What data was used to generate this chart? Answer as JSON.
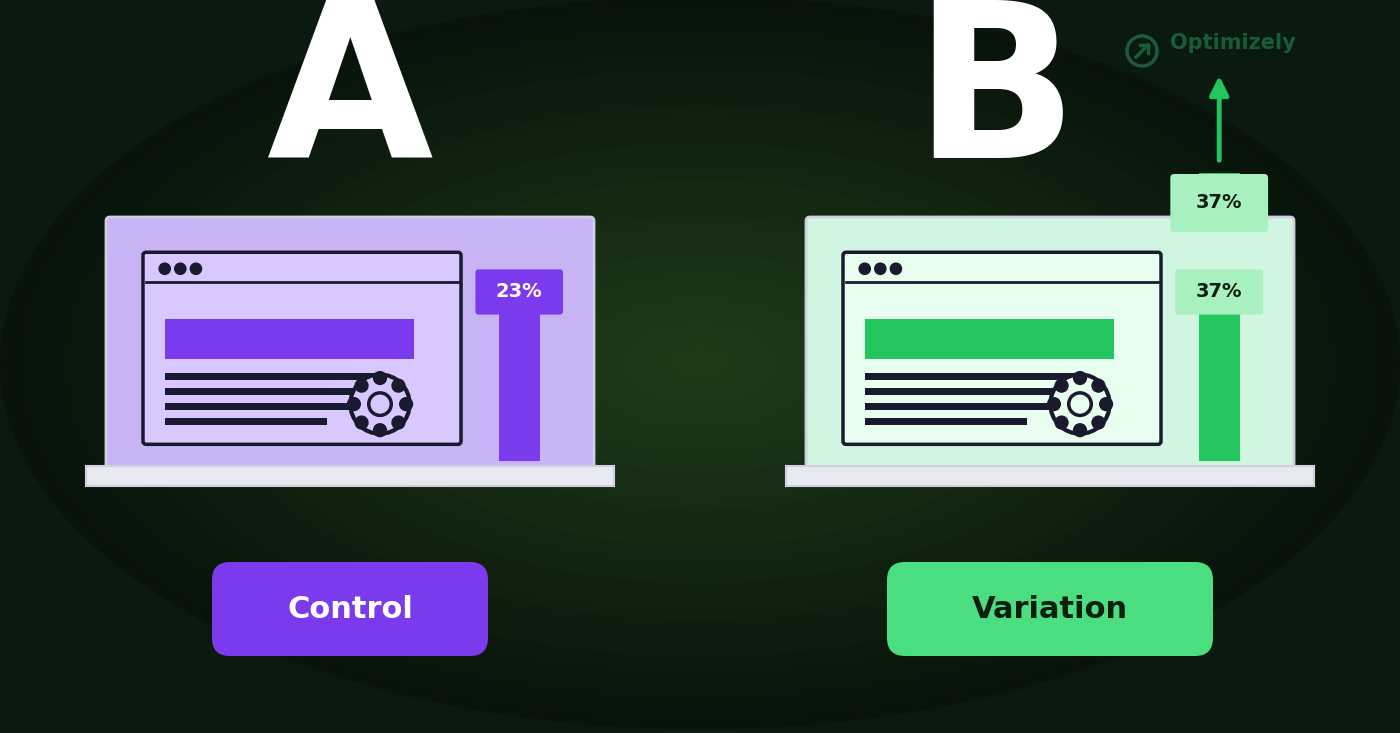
{
  "left_label": "A",
  "right_label": "B",
  "control_text": "Control",
  "variation_text": "Variation",
  "control_pct": "23%",
  "variation_pct": "37%",
  "purple_screen_bg": "#c8b4f5",
  "purple_screen_inner": "#bda8f0",
  "purple_bar_color": "#7c3aed",
  "purple_button_color": "#7c3aed",
  "purple_header_bar": "#7c3aed",
  "purple_browser_bg": "#d8c8ff",
  "green_screen_bg": "#d0f5e0",
  "green_screen_inner": "#c0f0d0",
  "green_bar_color": "#22c55e",
  "green_button_color": "#4ade80",
  "green_header_bar": "#22c55e",
  "green_browser_bg": "#e8fff0",
  "laptop_base_color": "#e8e8f0",
  "laptop_edge_color": "#d0d0e0",
  "white": "#ffffff",
  "dark_text": "#0f1f0f",
  "dark_line": "#1a1a2e",
  "optimizely_green": "#1a5c3a",
  "optimizely_text": "Optimizely",
  "arrow_color": "#22c55e",
  "bg_dark": "#0a1a10",
  "bg_mid": "#163524"
}
